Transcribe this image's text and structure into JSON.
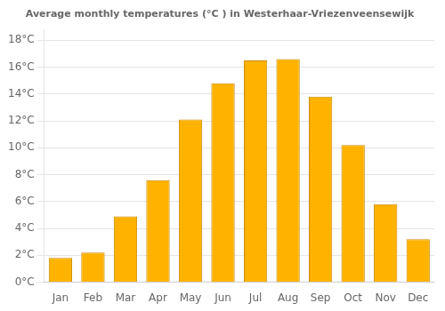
{
  "chart_data": {
    "type": "bar",
    "title": "Average monthly temperatures (°C ) in Westerhaar-Vriezenveensewijk",
    "categories": [
      "Jan",
      "Feb",
      "Mar",
      "Apr",
      "May",
      "Jun",
      "Jul",
      "Aug",
      "Sep",
      "Oct",
      "Nov",
      "Dec"
    ],
    "values": [
      1.8,
      2.2,
      4.9,
      7.6,
      12.1,
      14.8,
      16.5,
      16.6,
      13.8,
      10.2,
      5.8,
      3.2
    ],
    "color": "#FFB300",
    "ylim": [
      0,
      18.8
    ],
    "yticks": [
      {
        "value": 0,
        "label": "0°C"
      },
      {
        "value": 2,
        "label": "2°C"
      },
      {
        "value": 4,
        "label": "4°C"
      },
      {
        "value": 6,
        "label": "6°C"
      },
      {
        "value": 8,
        "label": "8°C"
      },
      {
        "value": 10,
        "label": "10°C"
      },
      {
        "value": 12,
        "label": "12°C"
      },
      {
        "value": 14,
        "label": "14°C"
      },
      {
        "value": 16,
        "label": "16°C"
      },
      {
        "value": 18,
        "label": "18°C"
      }
    ],
    "grid": true
  }
}
